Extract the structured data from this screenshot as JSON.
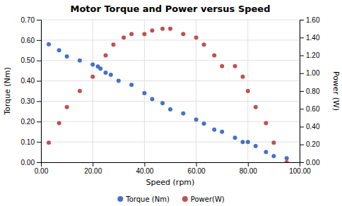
{
  "chart_data": {
    "type": "scatter",
    "title": "Motor Torque and Power versus Speed",
    "x_label": "Speed (rpm)",
    "y_label": "Torque (Nm)",
    "y2_label": "Power (W)",
    "series": [
      {
        "name": "Torque (Nm)",
        "color": "#4472C4",
        "x": [
          3,
          7,
          10,
          15,
          20,
          22,
          23,
          25,
          27,
          30,
          35,
          40,
          43,
          47,
          50,
          55,
          60,
          63,
          67,
          70,
          75,
          78,
          80,
          83,
          87,
          90,
          95
        ],
        "values": [
          0.58,
          0.55,
          0.52,
          0.5,
          0.48,
          0.47,
          0.46,
          0.44,
          0.43,
          0.4,
          0.38,
          0.34,
          0.31,
          0.29,
          0.26,
          0.24,
          0.21,
          0.19,
          0.16,
          0.15,
          0.12,
          0.1,
          0.1,
          0.08,
          0.05,
          0.03,
          0.02
        ]
      },
      {
        "name": "Power(W)",
        "color": "#C0504D",
        "axis": "y2",
        "x": [
          3,
          7,
          10,
          15,
          20,
          25,
          28,
          32,
          35,
          40,
          43,
          47,
          50,
          55,
          60,
          63,
          67,
          70,
          75,
          78,
          80,
          83,
          87,
          90,
          95
        ],
        "values": [
          0.22,
          0.44,
          0.62,
          0.8,
          0.96,
          1.2,
          1.32,
          1.4,
          1.44,
          1.44,
          1.48,
          1.5,
          1.5,
          1.44,
          1.4,
          1.32,
          1.2,
          1.08,
          1.08,
          0.96,
          0.8,
          0.62,
          0.44,
          0.22,
          0.0
        ]
      }
    ],
    "xlim": [
      0,
      100
    ],
    "xticks": [
      {
        "value": 0,
        "label": "0.00"
      },
      {
        "value": 20,
        "label": "20.00"
      },
      {
        "value": 40,
        "label": "40.00"
      },
      {
        "value": 60,
        "label": "60.00"
      },
      {
        "value": 80,
        "label": "80.00"
      },
      {
        "value": 100,
        "label": "100.00"
      }
    ],
    "ylim": [
      0.0,
      0.7
    ],
    "yticks": [
      {
        "value": 0.0,
        "label": "0.00"
      },
      {
        "value": 0.1,
        "label": "0.10"
      },
      {
        "value": 0.2,
        "label": "0.20"
      },
      {
        "value": 0.3,
        "label": "0.30"
      },
      {
        "value": 0.4,
        "label": "0.40"
      },
      {
        "value": 0.5,
        "label": "0.50"
      },
      {
        "value": 0.6,
        "label": "0.60"
      },
      {
        "value": 0.7,
        "label": "0.70"
      }
    ],
    "y2lim": [
      0.0,
      1.6
    ],
    "y2ticks": [
      {
        "value": 0.0,
        "label": "0.00"
      },
      {
        "value": 0.2,
        "label": "0.20"
      },
      {
        "value": 0.4,
        "label": "0.40"
      },
      {
        "value": 0.6,
        "label": "0.60"
      },
      {
        "value": 0.8,
        "label": "0.80"
      },
      {
        "value": 1.0,
        "label": "1.00"
      },
      {
        "value": 1.2,
        "label": "1.20"
      },
      {
        "value": 1.4,
        "label": "1.40"
      },
      {
        "value": 1.6,
        "label": "1.60"
      }
    ],
    "grid": true,
    "legend": "bottom"
  }
}
